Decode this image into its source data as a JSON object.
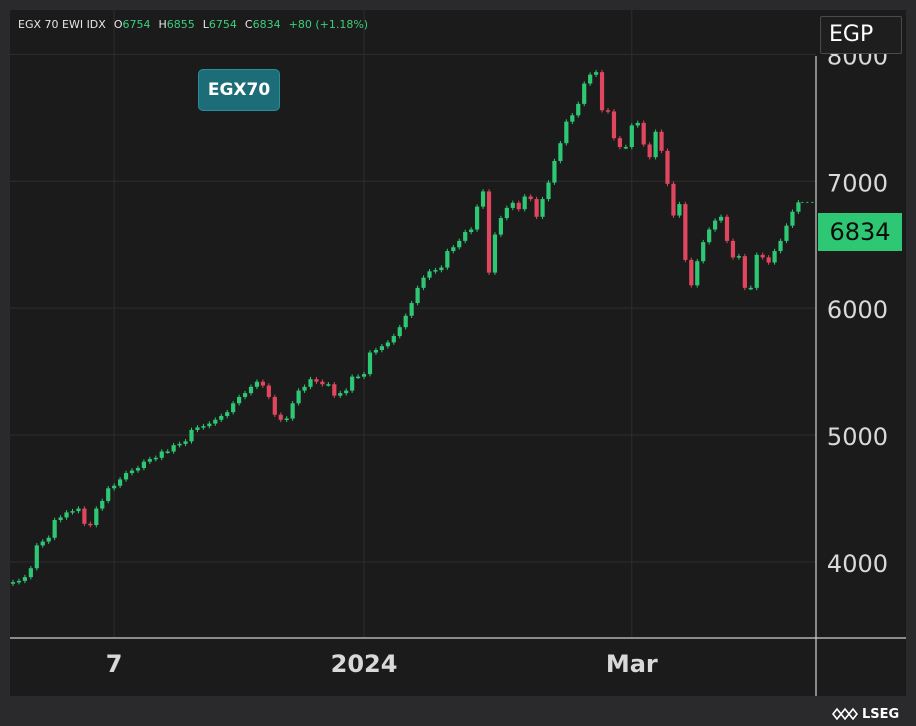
{
  "header": {
    "name": "EGX 70 EWI IDX",
    "open_key": "O",
    "open": "6754",
    "high_key": "H",
    "high": "6855",
    "low_key": "L",
    "low": "6754",
    "close_key": "C",
    "close": "6834",
    "change": "+80 (+1.18%)"
  },
  "currency": "EGP",
  "symbol_badge": "EGX70",
  "last_price_label": "6834",
  "logo_text": "LSEG",
  "colors": {
    "up": "#2ec774",
    "down": "#e0475e",
    "grid": "#2e2e2e",
    "badge": "#1d6d78",
    "last_price_bg": "#2ec774"
  },
  "chart_data": {
    "type": "candlestick",
    "y_ticks": [
      4000,
      5000,
      6000,
      7000,
      8000
    ],
    "y_tick_labels": [
      "4000",
      "5000",
      "6000",
      "7000",
      "8000"
    ],
    "ylim": [
      3400,
      8350
    ],
    "x_tick_labels": [
      "7",
      "2024",
      "Mar"
    ],
    "x_tick_bar_index": [
      17,
      59,
      104
    ],
    "grid": true,
    "last_value": 6834,
    "close_values": [
      3840,
      3850,
      3880,
      3950,
      4130,
      4160,
      4190,
      4330,
      4350,
      4390,
      4400,
      4420,
      4300,
      4290,
      4420,
      4480,
      4580,
      4600,
      4650,
      4700,
      4720,
      4740,
      4790,
      4810,
      4820,
      4870,
      4870,
      4920,
      4930,
      4950,
      5040,
      5060,
      5070,
      5090,
      5120,
      5150,
      5180,
      5250,
      5300,
      5330,
      5380,
      5420,
      5390,
      5300,
      5160,
      5120,
      5130,
      5250,
      5350,
      5380,
      5440,
      5420,
      5400,
      5400,
      5310,
      5330,
      5350,
      5460,
      5460,
      5480,
      5650,
      5670,
      5700,
      5730,
      5780,
      5850,
      5940,
      6040,
      6160,
      6240,
      6290,
      6300,
      6320,
      6450,
      6480,
      6530,
      6600,
      6620,
      6800,
      6920,
      6280,
      6580,
      6710,
      6790,
      6830,
      6780,
      6880,
      6860,
      6720,
      6860,
      6990,
      7160,
      7300,
      7470,
      7520,
      7610,
      7770,
      7840,
      7860,
      7560,
      7550,
      7340,
      7270,
      7270,
      7440,
      7460,
      7290,
      7190,
      7390,
      7240,
      6980,
      6730,
      6820,
      6380,
      6180,
      6370,
      6520,
      6620,
      6690,
      6720,
      6530,
      6400,
      6410,
      6160,
      6160,
      6420,
      6400,
      6360,
      6450,
      6530,
      6650,
      6760,
      6834
    ]
  }
}
